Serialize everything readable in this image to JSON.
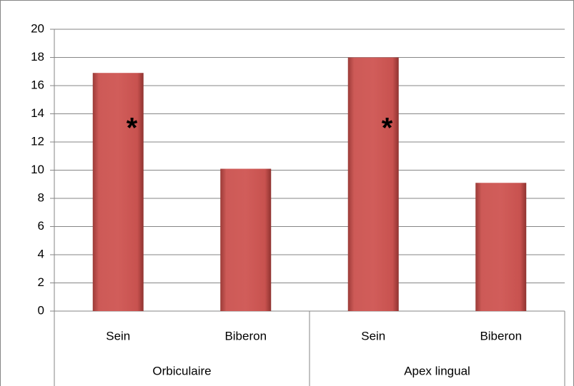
{
  "chart_data": {
    "type": "bar",
    "categories": [
      "Sein",
      "Biberon",
      "Sein",
      "Biberon"
    ],
    "groups": [
      "Orbiculaire",
      "Apex lingual"
    ],
    "values": [
      16.9,
      10.1,
      18,
      9.1
    ],
    "color": "#c0504d",
    "annotations": [
      "*",
      "*"
    ],
    "ylim": [
      0,
      20
    ],
    "yticks": [
      0,
      2,
      4,
      6,
      8,
      10,
      12,
      14,
      16,
      18,
      20
    ],
    "grid": true
  }
}
